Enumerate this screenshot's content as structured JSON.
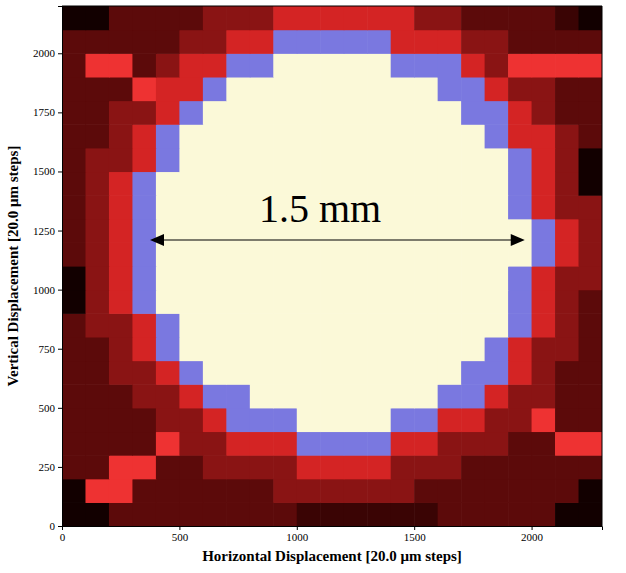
{
  "chart_data": {
    "type": "heatmap",
    "xlabel": "Horizontal Displacement [20.0 μm steps]",
    "ylabel": "Vertical Displacement [20.0 μm steps]",
    "xlim": [
      0,
      2300
    ],
    "ylim": [
      0,
      2200
    ],
    "xticks": [
      0,
      500,
      1000,
      1500,
      2000
    ],
    "yticks": [
      0,
      250,
      500,
      750,
      1000,
      1250,
      1500,
      1750,
      2000
    ],
    "zlim": [
      0,
      10
    ],
    "annotations": [
      {
        "text": "1.5 mm"
      }
    ],
    "x": [
      50,
      150,
      250,
      350,
      450,
      550,
      650,
      750,
      850,
      950,
      1050,
      1150,
      1250,
      1350,
      1450,
      1550,
      1650,
      1750,
      1850,
      1950,
      2050,
      2150,
      2250
    ],
    "y": [
      50,
      150,
      250,
      350,
      450,
      550,
      650,
      750,
      850,
      950,
      1050,
      1150,
      1250,
      1350,
      1450,
      1550,
      1650,
      1750,
      1850,
      1950,
      2050,
      2150
    ],
    "z": [
      [
        0,
        0,
        2,
        2,
        2,
        2,
        2,
        2,
        2,
        2,
        1,
        1,
        1,
        1,
        1,
        1,
        2,
        2,
        2,
        2,
        2,
        0,
        0
      ],
      [
        0,
        6,
        6,
        2,
        2,
        2,
        2,
        2,
        2,
        3,
        3,
        3,
        3,
        3,
        3,
        2,
        2,
        2,
        2,
        2,
        2,
        2,
        0
      ],
      [
        2,
        2,
        6,
        6,
        2,
        2,
        3,
        3,
        3,
        3,
        5,
        5,
        5,
        5,
        3,
        3,
        3,
        2,
        2,
        2,
        2,
        2,
        2
      ],
      [
        2,
        2,
        2,
        2,
        6,
        3,
        3,
        5,
        5,
        5,
        7,
        7,
        7,
        7,
        5,
        5,
        3,
        3,
        3,
        2,
        2,
        6,
        6
      ],
      [
        2,
        2,
        2,
        2,
        3,
        3,
        5,
        7,
        7,
        7,
        10,
        10,
        10,
        10,
        7,
        7,
        5,
        5,
        3,
        3,
        6,
        2,
        2
      ],
      [
        2,
        2,
        2,
        3,
        3,
        5,
        7,
        7,
        10,
        10,
        10,
        10,
        10,
        10,
        10,
        10,
        7,
        7,
        5,
        3,
        3,
        2,
        2
      ],
      [
        2,
        2,
        3,
        3,
        5,
        7,
        10,
        10,
        10,
        10,
        10,
        10,
        10,
        10,
        10,
        10,
        10,
        7,
        7,
        5,
        3,
        2,
        2
      ],
      [
        2,
        2,
        3,
        5,
        7,
        10,
        10,
        10,
        10,
        10,
        10,
        10,
        10,
        10,
        10,
        10,
        10,
        10,
        7,
        5,
        3,
        3,
        2
      ],
      [
        2,
        3,
        3,
        5,
        7,
        10,
        10,
        10,
        10,
        10,
        10,
        10,
        10,
        10,
        10,
        10,
        10,
        10,
        10,
        7,
        5,
        3,
        2
      ],
      [
        0,
        3,
        5,
        7,
        10,
        10,
        10,
        10,
        10,
        10,
        10,
        10,
        10,
        10,
        10,
        10,
        10,
        10,
        10,
        7,
        5,
        3,
        2
      ],
      [
        0,
        3,
        5,
        7,
        10,
        10,
        10,
        10,
        10,
        10,
        10,
        10,
        10,
        10,
        10,
        10,
        10,
        10,
        10,
        7,
        5,
        3,
        3
      ],
      [
        2,
        3,
        5,
        7,
        10,
        10,
        10,
        10,
        10,
        10,
        10,
        10,
        10,
        10,
        10,
        10,
        10,
        10,
        10,
        10,
        7,
        5,
        3
      ],
      [
        2,
        3,
        5,
        7,
        10,
        10,
        10,
        10,
        10,
        10,
        10,
        10,
        10,
        10,
        10,
        10,
        10,
        10,
        10,
        10,
        7,
        5,
        3
      ],
      [
        2,
        3,
        5,
        7,
        10,
        10,
        10,
        10,
        10,
        10,
        10,
        10,
        10,
        10,
        10,
        10,
        10,
        10,
        10,
        7,
        5,
        3,
        3
      ],
      [
        2,
        3,
        5,
        7,
        10,
        10,
        10,
        10,
        10,
        10,
        10,
        10,
        10,
        10,
        10,
        10,
        10,
        10,
        10,
        7,
        5,
        3,
        0
      ],
      [
        2,
        3,
        3,
        5,
        7,
        10,
        10,
        10,
        10,
        10,
        10,
        10,
        10,
        10,
        10,
        10,
        10,
        10,
        10,
        7,
        5,
        3,
        0
      ],
      [
        2,
        2,
        3,
        5,
        7,
        10,
        10,
        10,
        10,
        10,
        10,
        10,
        10,
        10,
        10,
        10,
        10,
        10,
        7,
        5,
        5,
        3,
        2
      ],
      [
        2,
        2,
        3,
        3,
        5,
        7,
        10,
        10,
        10,
        10,
        10,
        10,
        10,
        10,
        10,
        10,
        10,
        7,
        7,
        5,
        3,
        2,
        2
      ],
      [
        2,
        2,
        2,
        6,
        5,
        5,
        7,
        10,
        10,
        10,
        10,
        10,
        10,
        10,
        10,
        10,
        7,
        7,
        5,
        3,
        3,
        2,
        2
      ],
      [
        2,
        6,
        6,
        2,
        3,
        5,
        5,
        7,
        7,
        10,
        10,
        10,
        10,
        10,
        7,
        7,
        7,
        5,
        3,
        6,
        6,
        6,
        6
      ],
      [
        2,
        2,
        2,
        2,
        2,
        3,
        3,
        5,
        5,
        7,
        7,
        7,
        7,
        7,
        5,
        5,
        5,
        3,
        3,
        2,
        2,
        2,
        2
      ],
      [
        0,
        0,
        2,
        2,
        2,
        2,
        3,
        3,
        3,
        5,
        5,
        5,
        5,
        5,
        5,
        3,
        3,
        2,
        2,
        2,
        2,
        1,
        0
      ]
    ]
  }
}
